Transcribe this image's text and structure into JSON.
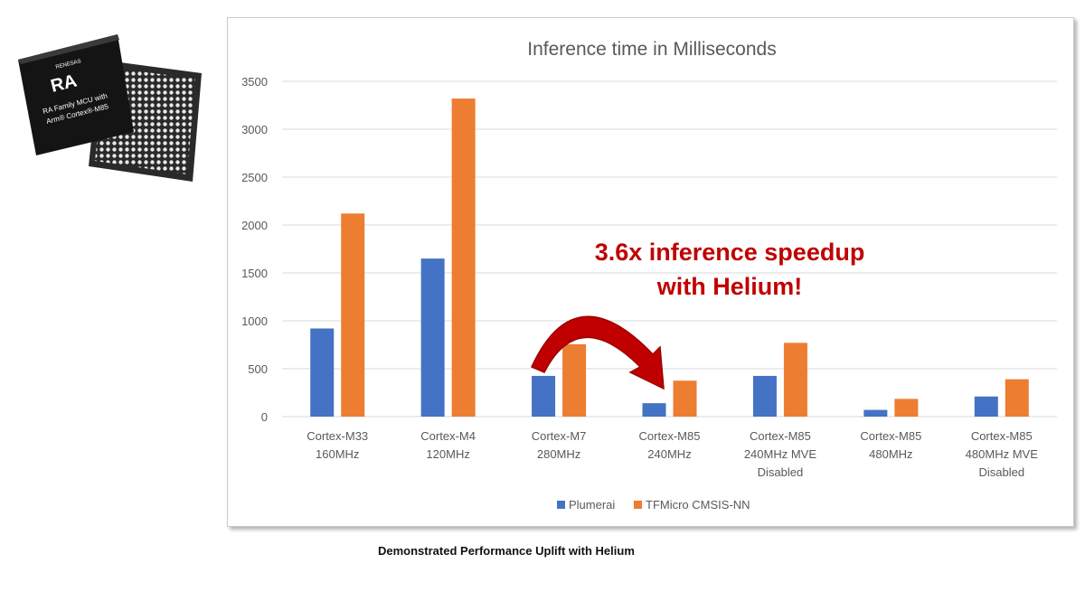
{
  "chip": {
    "brand": "RENESAS",
    "logo": "RA",
    "line1": "RA Family MCU with",
    "line2": "Arm® Cortex®-M85"
  },
  "caption": "Demonstrated Performance Uplift with Helium",
  "colors": {
    "plumerai": "#4472C4",
    "tfmicro": "#ED7D31",
    "annotation": "#C00000",
    "grid": "#d9d9d9",
    "axis_text": "#595959"
  },
  "chart_data": {
    "type": "bar",
    "title": "Inference time in Milliseconds",
    "categories": [
      [
        "Cortex-M33",
        "160MHz"
      ],
      [
        "Cortex-M4",
        "120MHz"
      ],
      [
        "Cortex-M7",
        "280MHz"
      ],
      [
        "Cortex-M85",
        "240MHz"
      ],
      [
        "Cortex-M85",
        "240MHz MVE",
        "Disabled"
      ],
      [
        "Cortex-M85",
        "480MHz"
      ],
      [
        "Cortex-M85",
        "480MHz MVE",
        "Disabled"
      ]
    ],
    "series": [
      {
        "name": "Plumerai",
        "values": [
          920,
          1650,
          425,
          140,
          425,
          70,
          210
        ]
      },
      {
        "name": "TFMicro CMSIS-NN",
        "values": [
          2120,
          3320,
          755,
          375,
          770,
          185,
          390
        ]
      }
    ],
    "ylim": [
      0,
      3500
    ],
    "yticks": [
      0,
      500,
      1000,
      1500,
      2000,
      2500,
      3000,
      3500
    ],
    "grid": true,
    "legend": "bottom",
    "annotation": {
      "lines": [
        "3.6x inference speedup",
        "with Helium!"
      ]
    }
  }
}
